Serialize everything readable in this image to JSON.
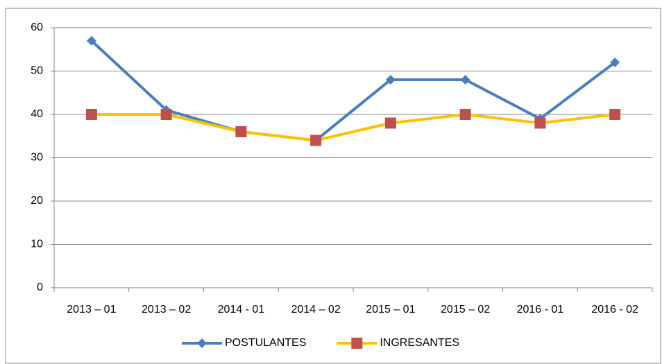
{
  "chart_data": {
    "type": "line",
    "categories": [
      "2013 – 01",
      "2013 – 02",
      "2014 - 01",
      "2014 – 02",
      "2015 – 01",
      "2015 – 02",
      "2016 - 01",
      "2016 - 02"
    ],
    "series": [
      {
        "name": "POSTULANTES",
        "color": "#4a7ebb",
        "marker": "diamond",
        "marker_color": "#4a7ebb",
        "values": [
          57,
          41,
          36,
          34,
          48,
          48,
          39,
          52
        ]
      },
      {
        "name": "INGRESANTES",
        "color": "#ffc000",
        "marker": "square",
        "marker_color": "#c0504d",
        "values": [
          40,
          40,
          36,
          34,
          38,
          40,
          38,
          40
        ]
      }
    ],
    "ylim": [
      0,
      60
    ],
    "yticks": [
      0,
      10,
      20,
      30,
      40,
      50,
      60
    ],
    "grid": true,
    "legend": "bottom"
  }
}
